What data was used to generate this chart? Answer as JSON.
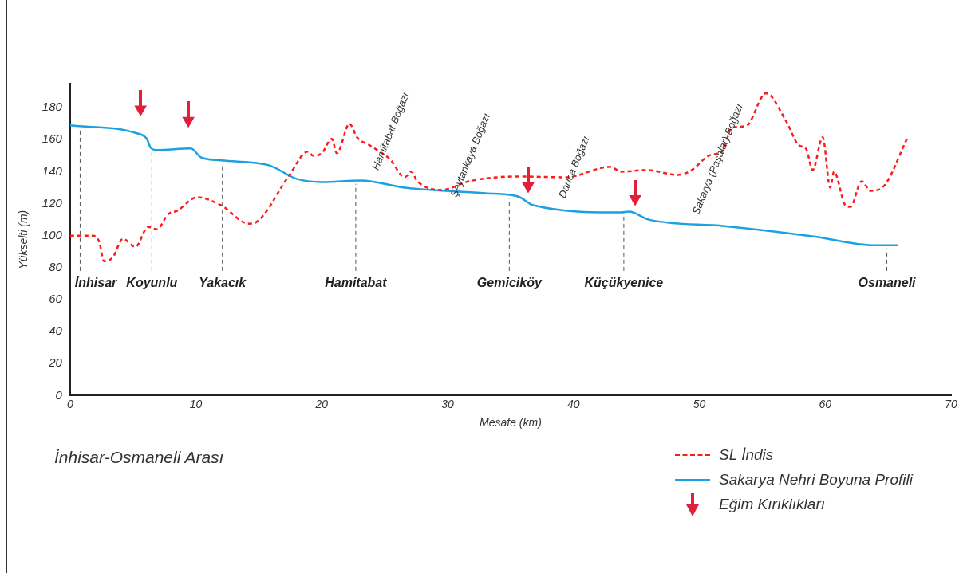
{
  "chart_data": {
    "type": "line",
    "xlabel": "Mesafe (km)",
    "ylabel": "Yükselti (m)",
    "xlim": [
      0,
      70
    ],
    "xticks": [
      0,
      10,
      20,
      30,
      40,
      50,
      60,
      70
    ],
    "ylim": [
      0,
      195
    ],
    "yticks": [
      0,
      20,
      40,
      60,
      80,
      100,
      120,
      140,
      160,
      180
    ],
    "grid": false,
    "legend": "bottom right",
    "series": [
      {
        "name": "SL İndis",
        "line_style": "dashed",
        "color": "#ff1a1a",
        "x": [
          0,
          1.8,
          2.3,
          2.7,
          3.4,
          4.2,
          5.2,
          6.2,
          6.9,
          7.8,
          8.5,
          10.1,
          12,
          14.2,
          14.8,
          17.4,
          18.9,
          19.3,
          20,
          20.8,
          21.2,
          22.2,
          22.8,
          23.8,
          24.6,
          25.4,
          26.6,
          27.1,
          27.6,
          29.5,
          31.7,
          35.6,
          39.4,
          42.9,
          43.8,
          45.8,
          48.3,
          49.3,
          50.9,
          51.8,
          52.6,
          53.7,
          55.3,
          56.9,
          57.9,
          58.5,
          59,
          59.8,
          60.4,
          60.7,
          61.6,
          62,
          62.9,
          63.6,
          64.6,
          66.5
        ],
        "values": [
          100,
          100,
          96.5,
          84,
          86.5,
          98,
          93,
          105.5,
          104,
          113.5,
          115.5,
          124,
          119,
          107.5,
          108.5,
          137.5,
          152.5,
          150,
          151.5,
          160.5,
          151.5,
          170,
          161.5,
          156.5,
          152.5,
          148,
          136.5,
          140,
          134,
          128.5,
          134,
          137,
          136.5,
          143,
          140,
          141,
          138,
          140.5,
          150.5,
          152.5,
          167.5,
          168.5,
          189,
          171.5,
          156.5,
          154,
          141,
          161.5,
          130,
          140,
          119,
          118,
          134,
          128,
          130.5,
          160.5
        ]
      },
      {
        "name": "Sakarya Nehri Boyuna Profili",
        "line_style": "solid",
        "color": "#1ba1e2",
        "x": [
          0,
          5.3,
          6.1,
          6.4,
          6.9,
          9.6,
          10.4,
          12,
          15.8,
          18,
          20,
          23.1,
          26.6,
          33,
          35.6,
          36.8,
          43.8,
          44.4,
          46,
          52,
          59.1,
          63.9,
          65.8
        ],
        "values": [
          169,
          164,
          160.5,
          155,
          153.5,
          154.5,
          149,
          147,
          144,
          135.5,
          133.5,
          134.5,
          130,
          126.5,
          124.5,
          119,
          114.5,
          115,
          110,
          106,
          99.5,
          94,
          94
        ]
      },
      {
        "name": "Eğim Kırıklıkları",
        "type": "scatter",
        "marker": "triangle",
        "color": "#e0203a",
        "x": [
          5.6,
          9.4,
          36.4,
          44.9
        ],
        "values": [
          179,
          172,
          131,
          123
        ]
      }
    ],
    "ref_lines": [
      {
        "axis": "x",
        "value": 0.8,
        "label": "İnhisar",
        "line_style": "dashed",
        "color": "#555555"
      },
      {
        "axis": "x",
        "value": 6.5,
        "label": "Koyunlu",
        "line_style": "dashed",
        "color": "#555555"
      },
      {
        "axis": "x",
        "value": 12.1,
        "label": "Yakacık",
        "line_style": "dashed",
        "color": "#555555"
      },
      {
        "axis": "x",
        "value": 22.7,
        "label": "Hamitabat",
        "line_style": "dashed",
        "color": "#555555"
      },
      {
        "axis": "x",
        "value": 34.9,
        "label": "Gemiciköy",
        "line_style": "dashed",
        "color": "#555555"
      },
      {
        "axis": "x",
        "value": 44,
        "label": "Küçükyenice",
        "line_style": "dashed",
        "color": "#555555"
      },
      {
        "axis": "x",
        "value": 64.9,
        "label": "Osmaneli",
        "line_style": "dashed",
        "color": "#555555"
      }
    ],
    "annotations": [
      "Hamitabat Boğazı",
      "Şeytankaya Boğazı",
      "Darıca Boğazı",
      "Sakarya (Paşalar) Boğazı",
      "İnhisar-Osmaneli Arası"
    ]
  }
}
